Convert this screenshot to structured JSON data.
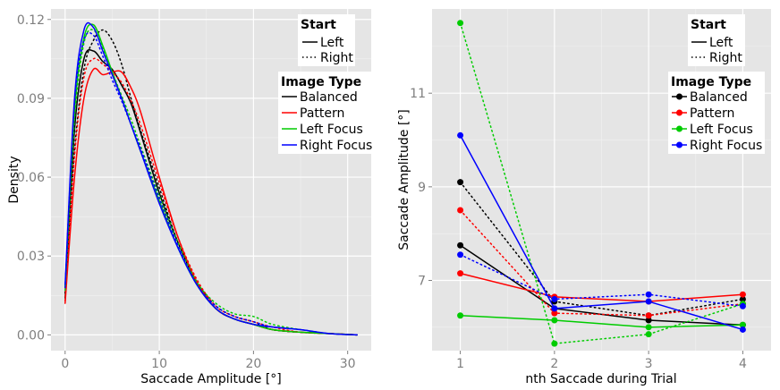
{
  "chart_data": [
    {
      "type": "line",
      "title": "",
      "xlabel": "Saccade Amplitude [°]",
      "ylabel": "Density",
      "xlim": [
        -1.5,
        32.5
      ],
      "ylim": [
        -0.006,
        0.124
      ],
      "xticks": [
        0,
        10,
        20,
        30
      ],
      "xtick_labels": [
        "0",
        "10",
        "20",
        "30"
      ],
      "yticks": [
        0.0,
        0.03,
        0.06,
        0.09,
        0.12
      ],
      "ytick_labels": [
        "0.00",
        "0.03",
        "0.06",
        "0.09",
        "0.12"
      ],
      "grid": true,
      "legend_start": {
        "title": "Start",
        "entries": [
          "Left",
          "Right"
        ]
      },
      "legend_image": {
        "title": "Image Type",
        "entries": [
          "Balanced",
          "Pattern",
          "Left Focus",
          "Right Focus"
        ]
      },
      "series": [
        {
          "name": "Balanced",
          "start": "Left",
          "color": "#000000",
          "x": [
            0,
            1,
            2,
            3,
            4,
            5,
            6,
            7,
            8,
            10,
            12,
            14,
            16,
            18,
            20,
            22,
            25,
            28,
            31
          ],
          "y": [
            0.014,
            0.078,
            0.105,
            0.108,
            0.104,
            0.101,
            0.095,
            0.088,
            0.077,
            0.054,
            0.035,
            0.02,
            0.01,
            0.006,
            0.004,
            0.002,
            0.001,
            0.0005,
            0.0
          ]
        },
        {
          "name": "Balanced",
          "start": "Right",
          "color": "#000000",
          "x": [
            0,
            1,
            2,
            3,
            4,
            5,
            6,
            7,
            8,
            10,
            12,
            14,
            16,
            18,
            20,
            22,
            25,
            28,
            31
          ],
          "y": [
            0.016,
            0.07,
            0.101,
            0.112,
            0.116,
            0.112,
            0.103,
            0.09,
            0.078,
            0.056,
            0.035,
            0.02,
            0.011,
            0.007,
            0.005,
            0.002,
            0.001,
            0.0005,
            0.0
          ]
        },
        {
          "name": "Pattern",
          "start": "Left",
          "color": "#ff0000",
          "x": [
            0,
            1,
            2,
            3,
            4,
            5,
            6,
            7,
            8,
            10,
            12,
            14,
            16,
            18,
            20,
            22,
            25,
            28,
            31
          ],
          "y": [
            0.012,
            0.06,
            0.09,
            0.101,
            0.099,
            0.1,
            0.1,
            0.094,
            0.085,
            0.06,
            0.037,
            0.02,
            0.01,
            0.006,
            0.004,
            0.002,
            0.001,
            0.0005,
            0.0
          ]
        },
        {
          "name": "Pattern",
          "start": "Right",
          "color": "#ff0000",
          "x": [
            0,
            1,
            2,
            3,
            4,
            5,
            6,
            7,
            8,
            10,
            12,
            14,
            16,
            18,
            20,
            22,
            25,
            28,
            31
          ],
          "y": [
            0.013,
            0.068,
            0.098,
            0.105,
            0.103,
            0.1,
            0.096,
            0.089,
            0.08,
            0.058,
            0.037,
            0.021,
            0.011,
            0.007,
            0.005,
            0.003,
            0.001,
            0.0005,
            0.0
          ]
        },
        {
          "name": "Left Focus",
          "start": "Left",
          "color": "#00cc00",
          "x": [
            0,
            1,
            2,
            3,
            4,
            5,
            6,
            7,
            8,
            10,
            12,
            14,
            16,
            18,
            20,
            22,
            25,
            28,
            31
          ],
          "y": [
            0.018,
            0.085,
            0.113,
            0.118,
            0.11,
            0.1,
            0.09,
            0.08,
            0.07,
            0.051,
            0.033,
            0.019,
            0.01,
            0.006,
            0.004,
            0.002,
            0.001,
            0.0005,
            0.0
          ]
        },
        {
          "name": "Left Focus",
          "start": "Right",
          "color": "#00cc00",
          "x": [
            0,
            1,
            2,
            3,
            4,
            5,
            6,
            7,
            8,
            10,
            12,
            14,
            16,
            18,
            20,
            22,
            25,
            28,
            31
          ],
          "y": [
            0.017,
            0.082,
            0.111,
            0.116,
            0.109,
            0.1,
            0.091,
            0.082,
            0.072,
            0.053,
            0.035,
            0.02,
            0.012,
            0.008,
            0.007,
            0.004,
            0.002,
            0.0005,
            0.0
          ]
        },
        {
          "name": "Right Focus",
          "start": "Left",
          "color": "#0000ff",
          "x": [
            0,
            1,
            2,
            3,
            4,
            5,
            6,
            7,
            8,
            10,
            12,
            14,
            16,
            18,
            20,
            22,
            25,
            28,
            31
          ],
          "y": [
            0.019,
            0.09,
            0.116,
            0.117,
            0.108,
            0.099,
            0.09,
            0.08,
            0.07,
            0.05,
            0.033,
            0.019,
            0.01,
            0.006,
            0.004,
            0.003,
            0.002,
            0.0005,
            0.0
          ]
        },
        {
          "name": "Right Focus",
          "start": "Right",
          "color": "#0000ff",
          "x": [
            0,
            1,
            2,
            3,
            4,
            5,
            6,
            7,
            8,
            10,
            12,
            14,
            16,
            18,
            20,
            22,
            25,
            28,
            31
          ],
          "y": [
            0.018,
            0.088,
            0.112,
            0.114,
            0.106,
            0.097,
            0.089,
            0.08,
            0.071,
            0.052,
            0.034,
            0.019,
            0.011,
            0.007,
            0.005,
            0.003,
            0.002,
            0.0005,
            0.0
          ]
        }
      ]
    },
    {
      "type": "line",
      "title": "",
      "xlabel": "nth Saccade during Trial",
      "ylabel": "Saccade Amplitude [°]",
      "xlim": [
        0.7,
        4.3
      ],
      "ylim": [
        5.5,
        12.8
      ],
      "xticks": [
        1,
        2,
        3,
        4
      ],
      "xtick_labels": [
        "1",
        "2",
        "3",
        "4"
      ],
      "yticks": [
        7,
        9,
        11
      ],
      "ytick_labels": [
        "7",
        "9",
        "11"
      ],
      "grid": true,
      "legend_start": {
        "title": "Start",
        "entries": [
          "Left",
          "Right"
        ]
      },
      "legend_image": {
        "title": "Image Type",
        "entries": [
          "Balanced",
          "Pattern",
          "Left Focus",
          "Right Focus"
        ]
      },
      "series": [
        {
          "name": "Balanced",
          "start": "Left",
          "color": "#000000",
          "x": [
            1,
            2,
            3,
            4
          ],
          "y": [
            7.75,
            6.4,
            6.15,
            6.05
          ]
        },
        {
          "name": "Balanced",
          "start": "Right",
          "color": "#000000",
          "x": [
            1,
            2,
            3,
            4
          ],
          "y": [
            9.1,
            6.55,
            6.25,
            6.6
          ]
        },
        {
          "name": "Pattern",
          "start": "Left",
          "color": "#ff0000",
          "x": [
            1,
            2,
            3,
            4
          ],
          "y": [
            7.15,
            6.65,
            6.55,
            6.7
          ]
        },
        {
          "name": "Pattern",
          "start": "Right",
          "color": "#ff0000",
          "x": [
            1,
            2,
            3,
            4
          ],
          "y": [
            8.5,
            6.3,
            6.25,
            6.5
          ]
        },
        {
          "name": "Left Focus",
          "start": "Left",
          "color": "#00cc00",
          "x": [
            1,
            2,
            3,
            4
          ],
          "y": [
            6.25,
            6.15,
            6.0,
            6.05
          ]
        },
        {
          "name": "Left Focus",
          "start": "Right",
          "color": "#00cc00",
          "x": [
            1,
            2,
            3,
            4
          ],
          "y": [
            12.5,
            5.65,
            5.85,
            6.5
          ]
        },
        {
          "name": "Right Focus",
          "start": "Left",
          "color": "#0000ff",
          "x": [
            1,
            2,
            3,
            4
          ],
          "y": [
            10.1,
            6.4,
            6.55,
            5.95
          ]
        },
        {
          "name": "Right Focus",
          "start": "Right",
          "color": "#0000ff",
          "x": [
            1,
            2,
            3,
            4
          ],
          "y": [
            7.55,
            6.6,
            6.7,
            6.45
          ]
        }
      ]
    }
  ]
}
